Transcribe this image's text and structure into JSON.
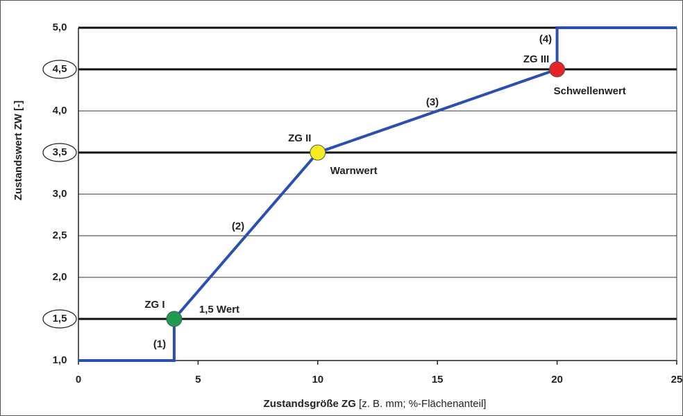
{
  "chart_data": {
    "type": "line",
    "xlabel": "Zustandsgröße ZG",
    "xlabel_unit": "[z. B. mm; %-Flächenanteil]",
    "ylabel": "Zustandswert ZW [-]",
    "xlim": [
      0,
      25
    ],
    "ylim": [
      1,
      5
    ],
    "xticks": [
      0,
      5,
      10,
      15,
      20,
      25
    ],
    "yticks": [
      {
        "value": 1,
        "label": "1,0"
      },
      {
        "value": 1.5,
        "label": "1,5",
        "circled": true
      },
      {
        "value": 2,
        "label": "2,0"
      },
      {
        "value": 2.5,
        "label": "2,5"
      },
      {
        "value": 3,
        "label": "3,0"
      },
      {
        "value": 3.5,
        "label": "3,5",
        "circled": true
      },
      {
        "value": 4,
        "label": "4,0"
      },
      {
        "value": 4.5,
        "label": "4,5",
        "circled": true
      },
      {
        "value": 5,
        "label": "5,0",
        "circled": false
      }
    ],
    "grid": true,
    "series": [
      {
        "color": "#2b4fb0",
        "x": [
          0,
          4,
          4,
          10,
          20,
          20,
          25
        ],
        "values": [
          1,
          1,
          1.5,
          3.5,
          4.5,
          5,
          5
        ]
      }
    ],
    "points": [
      {
        "label": "ZG I",
        "note": "1,5 Wert",
        "x": 4,
        "y": 1.5,
        "color": "#1e9a52"
      },
      {
        "label": "ZG II",
        "note": "Warnwert",
        "x": 10,
        "y": 3.5,
        "color": "#f7ee22"
      },
      {
        "label": "ZG III",
        "note": "Schwellenwert",
        "x": 20,
        "y": 4.5,
        "color": "#e8232a"
      }
    ],
    "annotations": [
      "(1)",
      "(2)",
      "(3)",
      "(4)"
    ]
  }
}
